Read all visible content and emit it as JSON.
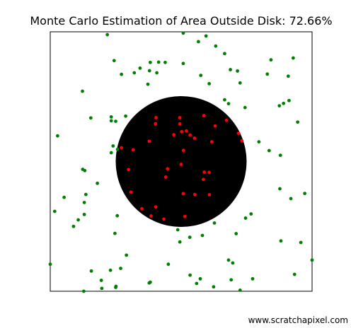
{
  "chart_data": {
    "type": "scatter",
    "title": "Monte Carlo Estimation of Area Outside Disk: 72.66%",
    "xlabel": "",
    "ylabel": "",
    "xlim": [
      0,
      1
    ],
    "ylim": [
      0,
      1
    ],
    "grid": false,
    "legend": "none",
    "axis_ticks": false,
    "disk": {
      "center": [
        0.5,
        0.5
      ],
      "radius": 0.25,
      "color": "#000000"
    },
    "series": [
      {
        "color": "#008000",
        "points": [
          [
            0.218,
            0.989
          ],
          [
            0.508,
            0.995
          ],
          [
            0.595,
            0.984
          ],
          [
            0.566,
            0.962
          ],
          [
            0.632,
            0.945
          ],
          [
            0.666,
            0.916
          ],
          [
            0.244,
            0.889
          ],
          [
            0.382,
            0.882
          ],
          [
            0.414,
            0.883
          ],
          [
            0.439,
            0.882
          ],
          [
            0.508,
            0.878
          ],
          [
            0.843,
            0.892
          ],
          [
            0.928,
            0.899
          ],
          [
            0.343,
            0.86
          ],
          [
            0.272,
            0.836
          ],
          [
            0.321,
            0.842
          ],
          [
            0.379,
            0.85
          ],
          [
            0.407,
            0.842
          ],
          [
            0.575,
            0.832
          ],
          [
            0.688,
            0.854
          ],
          [
            0.715,
            0.849
          ],
          [
            0.829,
            0.837
          ],
          [
            0.909,
            0.829
          ],
          [
            0.373,
            0.798
          ],
          [
            0.607,
            0.8
          ],
          [
            0.725,
            0.803
          ],
          [
            0.123,
            0.771
          ],
          [
            0.666,
            0.738
          ],
          [
            0.681,
            0.723
          ],
          [
            0.744,
            0.708
          ],
          [
            0.912,
            0.735
          ],
          [
            0.875,
            0.715
          ],
          [
            0.891,
            0.724
          ],
          [
            0.233,
            0.672
          ],
          [
            0.155,
            0.668
          ],
          [
            0.233,
            0.657
          ],
          [
            0.25,
            0.655
          ],
          [
            0.288,
            0.675
          ],
          [
            0.945,
            0.652
          ],
          [
            0.028,
            0.599
          ],
          [
            0.797,
            0.576
          ],
          [
            0.24,
            0.56
          ],
          [
            0.257,
            0.547
          ],
          [
            0.233,
            0.534
          ],
          [
            0.836,
            0.542
          ],
          [
            0.879,
            0.524
          ],
          [
            0.124,
            0.47
          ],
          [
            0.132,
            0.465
          ],
          [
            0.18,
            0.416
          ],
          [
            0.877,
            0.395
          ],
          [
            0.972,
            0.377
          ],
          [
            0.136,
            0.373
          ],
          [
            0.053,
            0.362
          ],
          [
            0.919,
            0.357
          ],
          [
            0.13,
            0.342
          ],
          [
            0.017,
            0.308
          ],
          [
            0.767,
            0.298
          ],
          [
            0.13,
            0.296
          ],
          [
            0.256,
            0.291
          ],
          [
            0.746,
            0.282
          ],
          [
            0.627,
            0.263
          ],
          [
            0.107,
            0.275
          ],
          [
            0.089,
            0.25
          ],
          [
            0.487,
            0.237
          ],
          [
            0.247,
            0.223
          ],
          [
            0.71,
            0.222
          ],
          [
            0.533,
            0.208
          ],
          [
            0.581,
            0.215
          ],
          [
            0.495,
            0.19
          ],
          [
            0.881,
            0.194
          ],
          [
            0.957,
            0.188
          ],
          [
            0.291,
            0.139
          ],
          [
            0.0,
            0.104
          ],
          [
            0.451,
            0.104
          ],
          [
            0.681,
            0.12
          ],
          [
            0.697,
            0.109
          ],
          [
            0.157,
            0.078
          ],
          [
            0.23,
            0.081
          ],
          [
            0.269,
            0.088
          ],
          [
            0.534,
            0.062
          ],
          [
            0.573,
            0.048
          ],
          [
            0.691,
            0.044
          ],
          [
            0.195,
            0.042
          ],
          [
            0.382,
            0.035
          ],
          [
            0.378,
            0.032
          ],
          [
            0.559,
            0.03
          ],
          [
            0.25,
            0.015
          ],
          [
            0.251,
            0.019
          ],
          [
            0.197,
            0.011
          ],
          [
            0.624,
            0.017
          ],
          [
            0.725,
            0.004
          ],
          [
            0.128,
            0.0
          ],
          [
            0.933,
            0.065
          ],
          [
            1.0,
            0.12
          ],
          [
            0.773,
            0.048
          ]
        ]
      },
      {
        "color": "#ff0000",
        "points": [
          [
            0.404,
            0.669
          ],
          [
            0.495,
            0.669
          ],
          [
            0.587,
            0.677
          ],
          [
            0.402,
            0.646
          ],
          [
            0.495,
            0.645
          ],
          [
            0.63,
            0.637
          ],
          [
            0.673,
            0.659
          ],
          [
            0.52,
            0.618
          ],
          [
            0.502,
            0.615
          ],
          [
            0.534,
            0.602
          ],
          [
            0.472,
            0.603
          ],
          [
            0.551,
            0.59
          ],
          [
            0.719,
            0.609
          ],
          [
            0.732,
            0.58
          ],
          [
            0.378,
            0.578
          ],
          [
            0.617,
            0.576
          ],
          [
            0.272,
            0.553
          ],
          [
            0.317,
            0.545
          ],
          [
            0.509,
            0.543
          ],
          [
            0.5,
            0.489
          ],
          [
            0.448,
            0.472
          ],
          [
            0.588,
            0.459
          ],
          [
            0.299,
            0.469
          ],
          [
            0.607,
            0.458
          ],
          [
            0.441,
            0.44
          ],
          [
            0.585,
            0.431
          ],
          [
            0.508,
            0.376
          ],
          [
            0.552,
            0.373
          ],
          [
            0.608,
            0.372
          ],
          [
            0.308,
            0.382
          ],
          [
            0.35,
            0.318
          ],
          [
            0.403,
            0.325
          ],
          [
            0.385,
            0.29
          ],
          [
            0.434,
            0.278
          ],
          [
            0.514,
            0.288
          ]
        ]
      }
    ]
  },
  "footer": {
    "credit": "www.scratchapixel.com"
  }
}
